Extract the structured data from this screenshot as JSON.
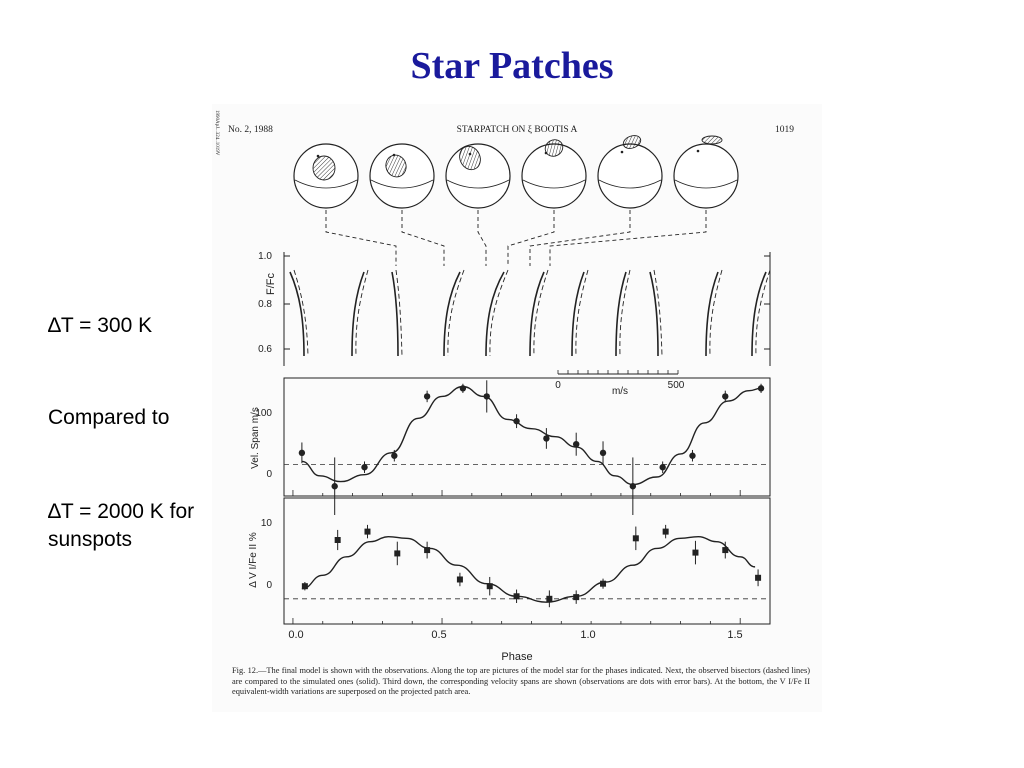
{
  "slide": {
    "title": "Star Patches",
    "bullets": [
      {
        "delta": "∆",
        "text": "T = 300 K"
      },
      {
        "delta": "",
        "text": "Compared to"
      },
      {
        "delta": "∆",
        "text": "T = 2000 K for sunspots"
      }
    ]
  },
  "figure": {
    "header_left": "No. 2, 1988",
    "header_center": "STARPATCH ON ξ BOOTIS A",
    "header_right": "1019",
    "margin_note": "1990ApJ...324..1019V",
    "caption": "Fig. 12.—The final model is shown with the observations. Along the top are pictures of the model star for the phases indicated. Next, the observed bisectors (dashed lines) are compared to the simulated ones (solid). Third down, the corresponding velocity spans are shown (observations are dots with error bars). At the bottom, the V I/Fe II equivalent-width variations are superposed on the projected patch area.",
    "panels": {
      "bisectors": {
        "ylabel": "F/Fc",
        "yticks": [
          "1.0",
          "0.8",
          "0.6"
        ],
        "scale_ticks": [
          "0",
          "500"
        ],
        "scale_unit": "m/s"
      },
      "velocity": {
        "ylabel": "Vel. Span  m/s",
        "yticks": [
          "100",
          "0"
        ]
      },
      "ratio": {
        "ylabel": "Δ V I/Fe II %",
        "yticks": [
          "10",
          "0"
        ]
      },
      "xticks": [
        "0.0",
        "0.5",
        "1.0",
        "1.5"
      ],
      "xlabel": "Phase"
    }
  },
  "chart_data": [
    {
      "type": "scatter",
      "title": "",
      "xlabel": "Phase",
      "ylabel": "Vel. Span m/s",
      "xlim": [
        -0.03,
        1.6
      ],
      "ylim": [
        -55,
        150
      ],
      "grid": false,
      "series": [
        {
          "x": [
            0.03,
            0.14,
            0.24,
            0.34,
            0.45,
            0.57,
            0.65,
            0.75,
            0.85,
            0.95,
            1.04,
            1.14,
            1.24,
            1.34,
            1.45,
            1.57
          ],
          "values": [
            20,
            -38,
            -5,
            15,
            118,
            132,
            118,
            75,
            45,
            35,
            20,
            -38,
            -5,
            15,
            118,
            132
          ],
          "errors": [
            18,
            50,
            10,
            10,
            10,
            8,
            28,
            12,
            18,
            20,
            20,
            50,
            10,
            10,
            10,
            8
          ]
        }
      ],
      "fit_curve": {
        "x": [
          0.03,
          0.09,
          0.16,
          0.24,
          0.33,
          0.42,
          0.5,
          0.57,
          0.64,
          0.72,
          0.8,
          0.88,
          0.95,
          1.02,
          1.08,
          1.14,
          1.22,
          1.3,
          1.38,
          1.46,
          1.53,
          1.57
        ],
        "values": [
          5,
          -20,
          -30,
          -18,
          20,
          80,
          118,
          135,
          118,
          78,
          62,
          48,
          30,
          5,
          -20,
          -35,
          -22,
          18,
          72,
          110,
          128,
          132
        ]
      },
      "zero_line": 0
    },
    {
      "type": "scatter",
      "title": "",
      "xlabel": "Phase",
      "ylabel": "Δ V I/Fe II %",
      "xlim": [
        -0.03,
        1.6
      ],
      "ylim": [
        -3,
        12
      ],
      "grid": false,
      "series": [
        {
          "x": [
            0.04,
            0.15,
            0.25,
            0.35,
            0.45,
            0.56,
            0.66,
            0.75,
            0.86,
            0.95,
            1.04,
            1.15,
            1.25,
            1.35,
            1.45,
            1.56
          ],
          "values": [
            1.5,
            7.0,
            8.0,
            5.4,
            5.8,
            2.3,
            1.5,
            0.3,
            0.0,
            0.2,
            1.8,
            7.2,
            8.0,
            5.5,
            5.8,
            2.5
          ],
          "errors": [
            0.5,
            1.2,
            0.8,
            1.4,
            1.0,
            0.8,
            1.1,
            0.8,
            1.0,
            0.8,
            0.6,
            1.4,
            0.8,
            1.4,
            1.0,
            1.0
          ]
        }
      ],
      "fit_curve": {
        "x": [
          0.03,
          0.1,
          0.18,
          0.26,
          0.32,
          0.38,
          0.46,
          0.55,
          0.65,
          0.75,
          0.85,
          0.95,
          1.05,
          1.14,
          1.22,
          1.3,
          1.36,
          1.42,
          1.5,
          1.55
        ],
        "values": [
          1.2,
          2.8,
          5.0,
          6.8,
          7.4,
          7.2,
          6.0,
          4.0,
          1.8,
          0.3,
          -0.4,
          0.3,
          2.0,
          4.0,
          6.0,
          7.2,
          7.4,
          6.8,
          5.0,
          3.8
        ]
      },
      "zero_line": 0
    }
  ]
}
